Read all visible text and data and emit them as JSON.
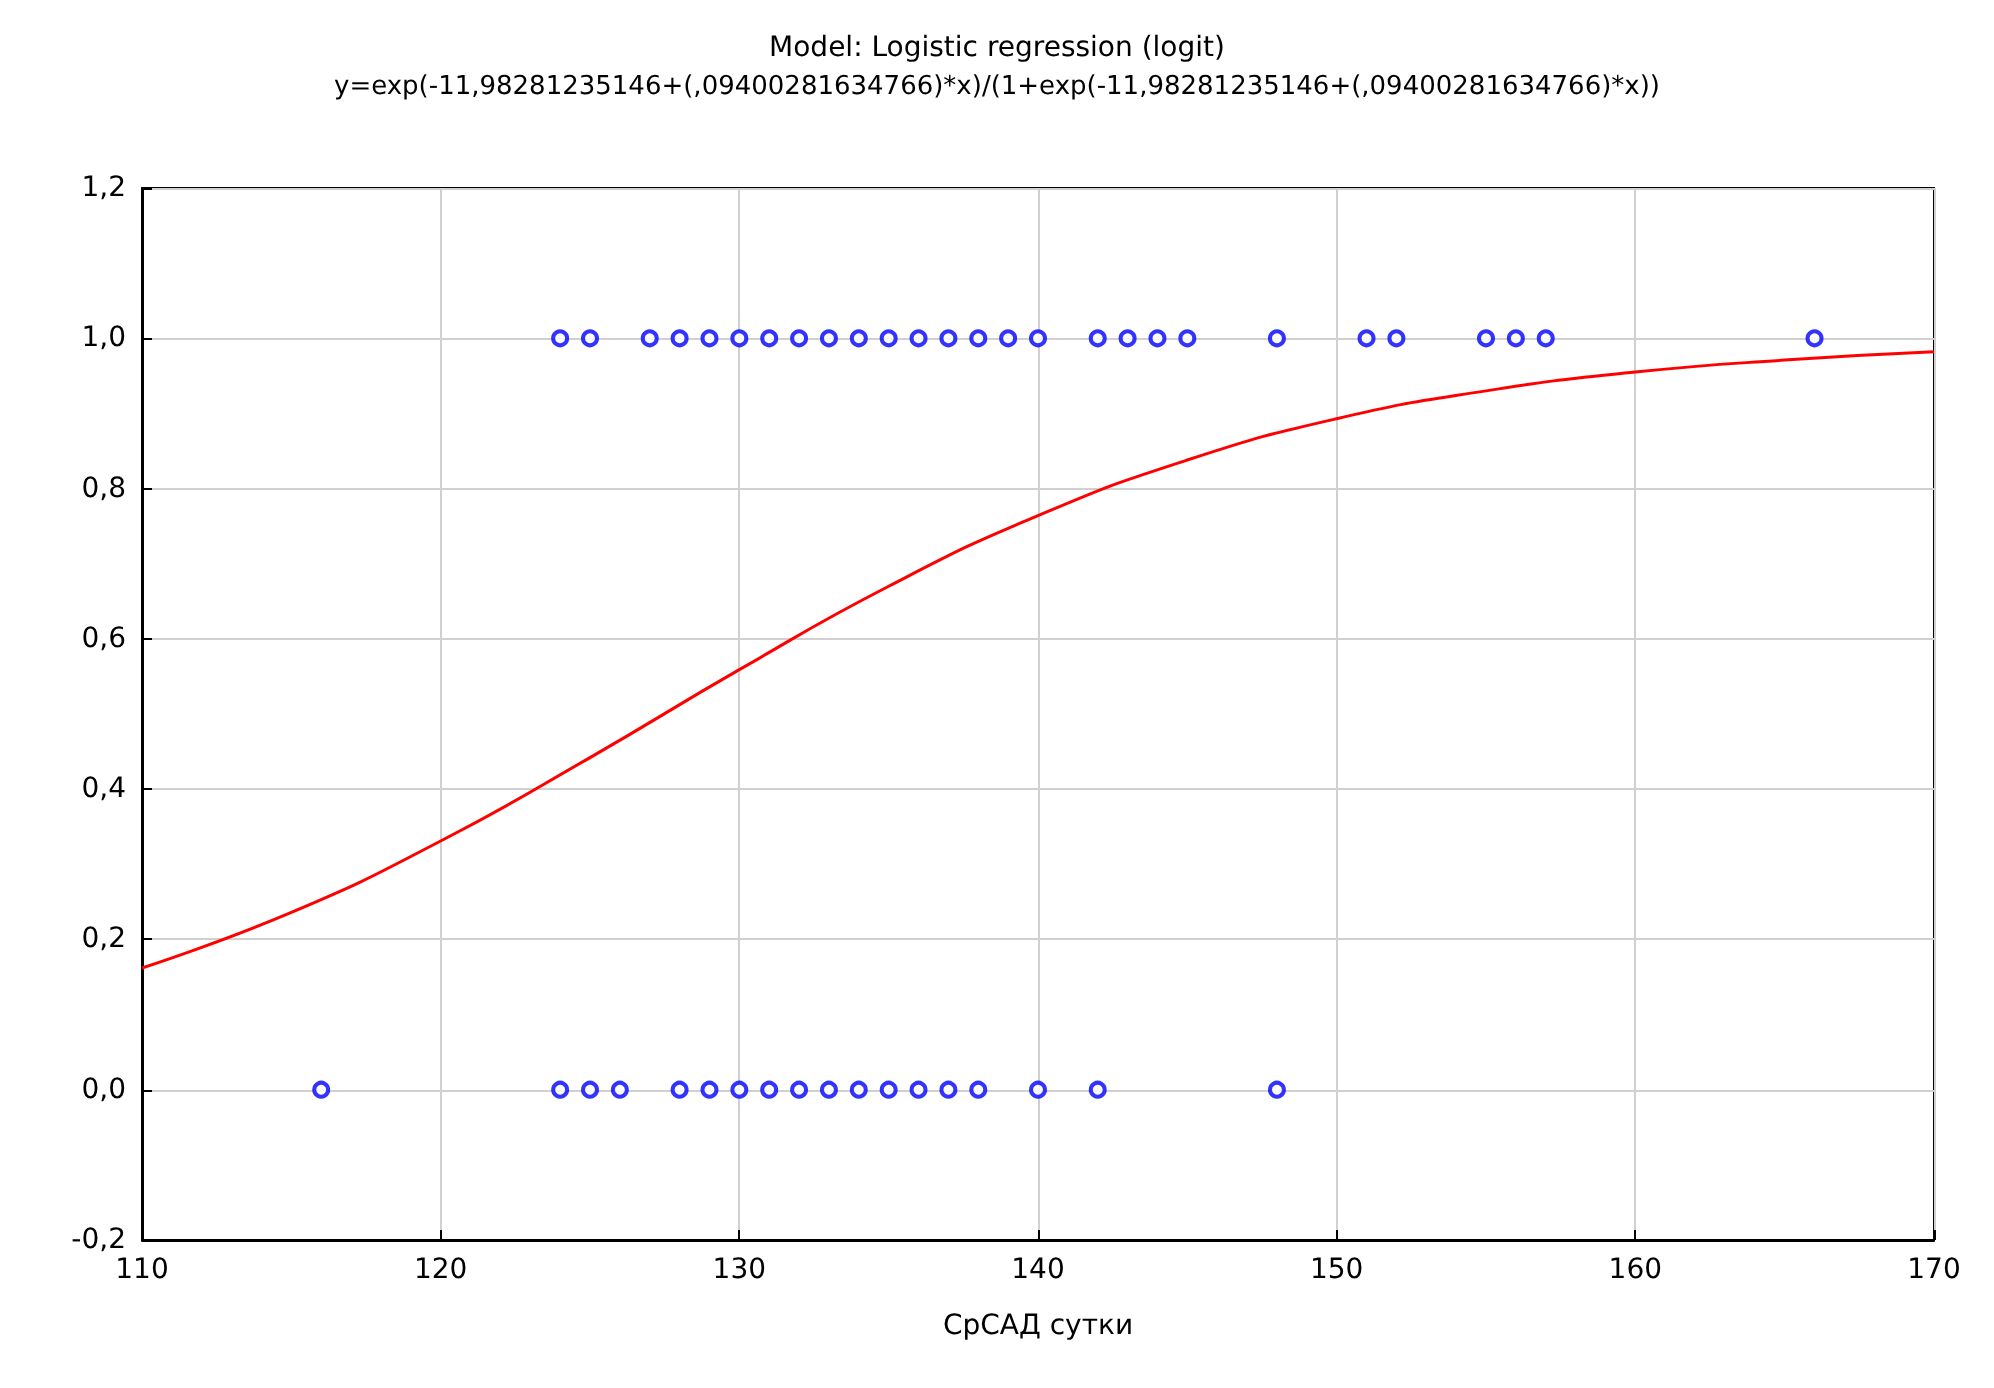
{
  "chart_data": {
    "type": "scatter",
    "title": "Model: Logistic regression (logit)",
    "subtitle": "y=exp(-11,98281235146+(,09400281634766)*x)/(1+exp(-11,98281235146+(,09400281634766)*x))",
    "xlabel": "СрСАД сутки",
    "xlim": [
      110,
      170
    ],
    "xticks": [
      110,
      120,
      130,
      140,
      150,
      160,
      170
    ],
    "ylim": [
      -0.2,
      1.2
    ],
    "yticks": [
      {
        "value": -0.2,
        "label": "-0,2"
      },
      {
        "value": 0,
        "label": "0,0"
      },
      {
        "value": 0.2,
        "label": "0,2"
      },
      {
        "value": 0.4,
        "label": "0,4"
      },
      {
        "value": 0.6,
        "label": "0,6"
      },
      {
        "value": 0.8,
        "label": "0,8"
      },
      {
        "value": 1,
        "label": "1,0"
      },
      {
        "value": 1.2,
        "label": "1,2"
      }
    ],
    "grid": true,
    "series": [
      {
        "marker": "circle",
        "color": "#0000ff",
        "x": [
          124,
          125,
          127,
          128,
          129,
          130,
          131,
          132,
          133,
          134,
          135,
          136,
          137,
          138,
          139,
          140,
          142,
          143,
          144,
          145,
          148,
          151,
          152,
          155,
          156,
          157,
          166,
          116,
          124,
          125,
          126,
          128,
          129,
          130,
          131,
          132,
          133,
          134,
          135,
          136,
          137,
          138,
          140,
          142,
          148
        ],
        "values": [
          1,
          1,
          1,
          1,
          1,
          1,
          1,
          1,
          1,
          1,
          1,
          1,
          1,
          1,
          1,
          1,
          1,
          1,
          1,
          1,
          1,
          1,
          1,
          1,
          1,
          1,
          1,
          0,
          0,
          0,
          0,
          0,
          0,
          0,
          0,
          0,
          0,
          0,
          0,
          0,
          0,
          0,
          0,
          0,
          0
        ]
      },
      {
        "type": "line",
        "color": "#ff0000",
        "x": [
          110,
          115,
          120,
          125,
          130,
          135,
          140,
          145,
          150,
          155,
          160,
          165,
          170
        ],
        "values": [
          0.162,
          0.236,
          0.331,
          0.442,
          0.559,
          0.67,
          0.764,
          0.838,
          0.893,
          0.93,
          0.955,
          0.971,
          0.982
        ]
      }
    ]
  }
}
